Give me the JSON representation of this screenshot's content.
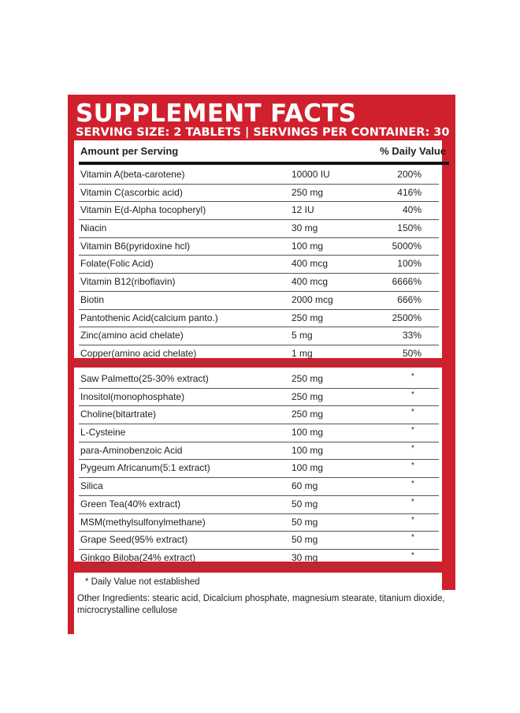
{
  "panel": {
    "title": "SUPPLEMENT FACTS",
    "serving_info": "SERVING SIZE: 2 TABLETS  |  SERVINGS PER CONTAINER: 30",
    "accent_color": "#d0202e"
  },
  "table": {
    "header_left": "Amount per Serving",
    "header_right": "% Daily Value",
    "vitamins": [
      {
        "name": "Vitamin A(beta-carotene)",
        "amount": "10000 IU",
        "dv": "200%"
      },
      {
        "name": "Vitamin C(ascorbic acid)",
        "amount": "250 mg",
        "dv": "416%"
      },
      {
        "name": "Vitamin E(d-Alpha tocopheryl)",
        "amount": "12 IU",
        "dv": "40%"
      },
      {
        "name": "Niacin",
        "amount": "30 mg",
        "dv": "150%"
      },
      {
        "name": "Vitamin B6(pyridoxine hcl)",
        "amount": "100 mg",
        "dv": "5000%"
      },
      {
        "name": "Folate(Folic Acid)",
        "amount": "400 mcg",
        "dv": "100%"
      },
      {
        "name": "Vitamin B12(riboflavin)",
        "amount": "400 mcg",
        "dv": "6666%"
      },
      {
        "name": "Biotin",
        "amount": "2000 mcg",
        "dv": "666%"
      },
      {
        "name": "Pantothenic Acid(calcium panto.)",
        "amount": "250 mg",
        "dv": "2500%"
      },
      {
        "name": "Zinc(amino acid chelate)",
        "amount": "5 mg",
        "dv": "33%"
      },
      {
        "name": "Copper(amino acid chelate)",
        "amount": "1 mg",
        "dv": "50%"
      }
    ],
    "others": [
      {
        "name": "Saw Palmetto(25-30% extract)",
        "amount": "250 mg",
        "dv": "*"
      },
      {
        "name": "Inositol(monophosphate)",
        "amount": "250 mg",
        "dv": "*"
      },
      {
        "name": "Choline(bitartrate)",
        "amount": "250 mg",
        "dv": "*"
      },
      {
        "name": "L-Cysteine",
        "amount": "100 mg",
        "dv": "*"
      },
      {
        "name": "para-Aminobenzoic Acid",
        "amount": "100 mg",
        "dv": "*"
      },
      {
        "name": "Pygeum Africanum(5:1 extract)",
        "amount": "100 mg",
        "dv": "*"
      },
      {
        "name": "Silica",
        "amount": "60 mg",
        "dv": "*"
      },
      {
        "name": "Green Tea(40% extract)",
        "amount": "50 mg",
        "dv": "*"
      },
      {
        "name": "MSM(methylsulfonylmethane)",
        "amount": "50 mg",
        "dv": "*"
      },
      {
        "name": "Grape Seed(95% extract)",
        "amount": "50 mg",
        "dv": "*"
      },
      {
        "name": "Ginkgo Biloba(24% extract)",
        "amount": "30 mg",
        "dv": "*"
      }
    ]
  },
  "footnote": "* Daily Value not established",
  "other_ingredients": "Other Ingredients: stearic acid, Dicalcium phosphate, magnesium stearate, titanium dioxide, microcrystalline cellulose"
}
